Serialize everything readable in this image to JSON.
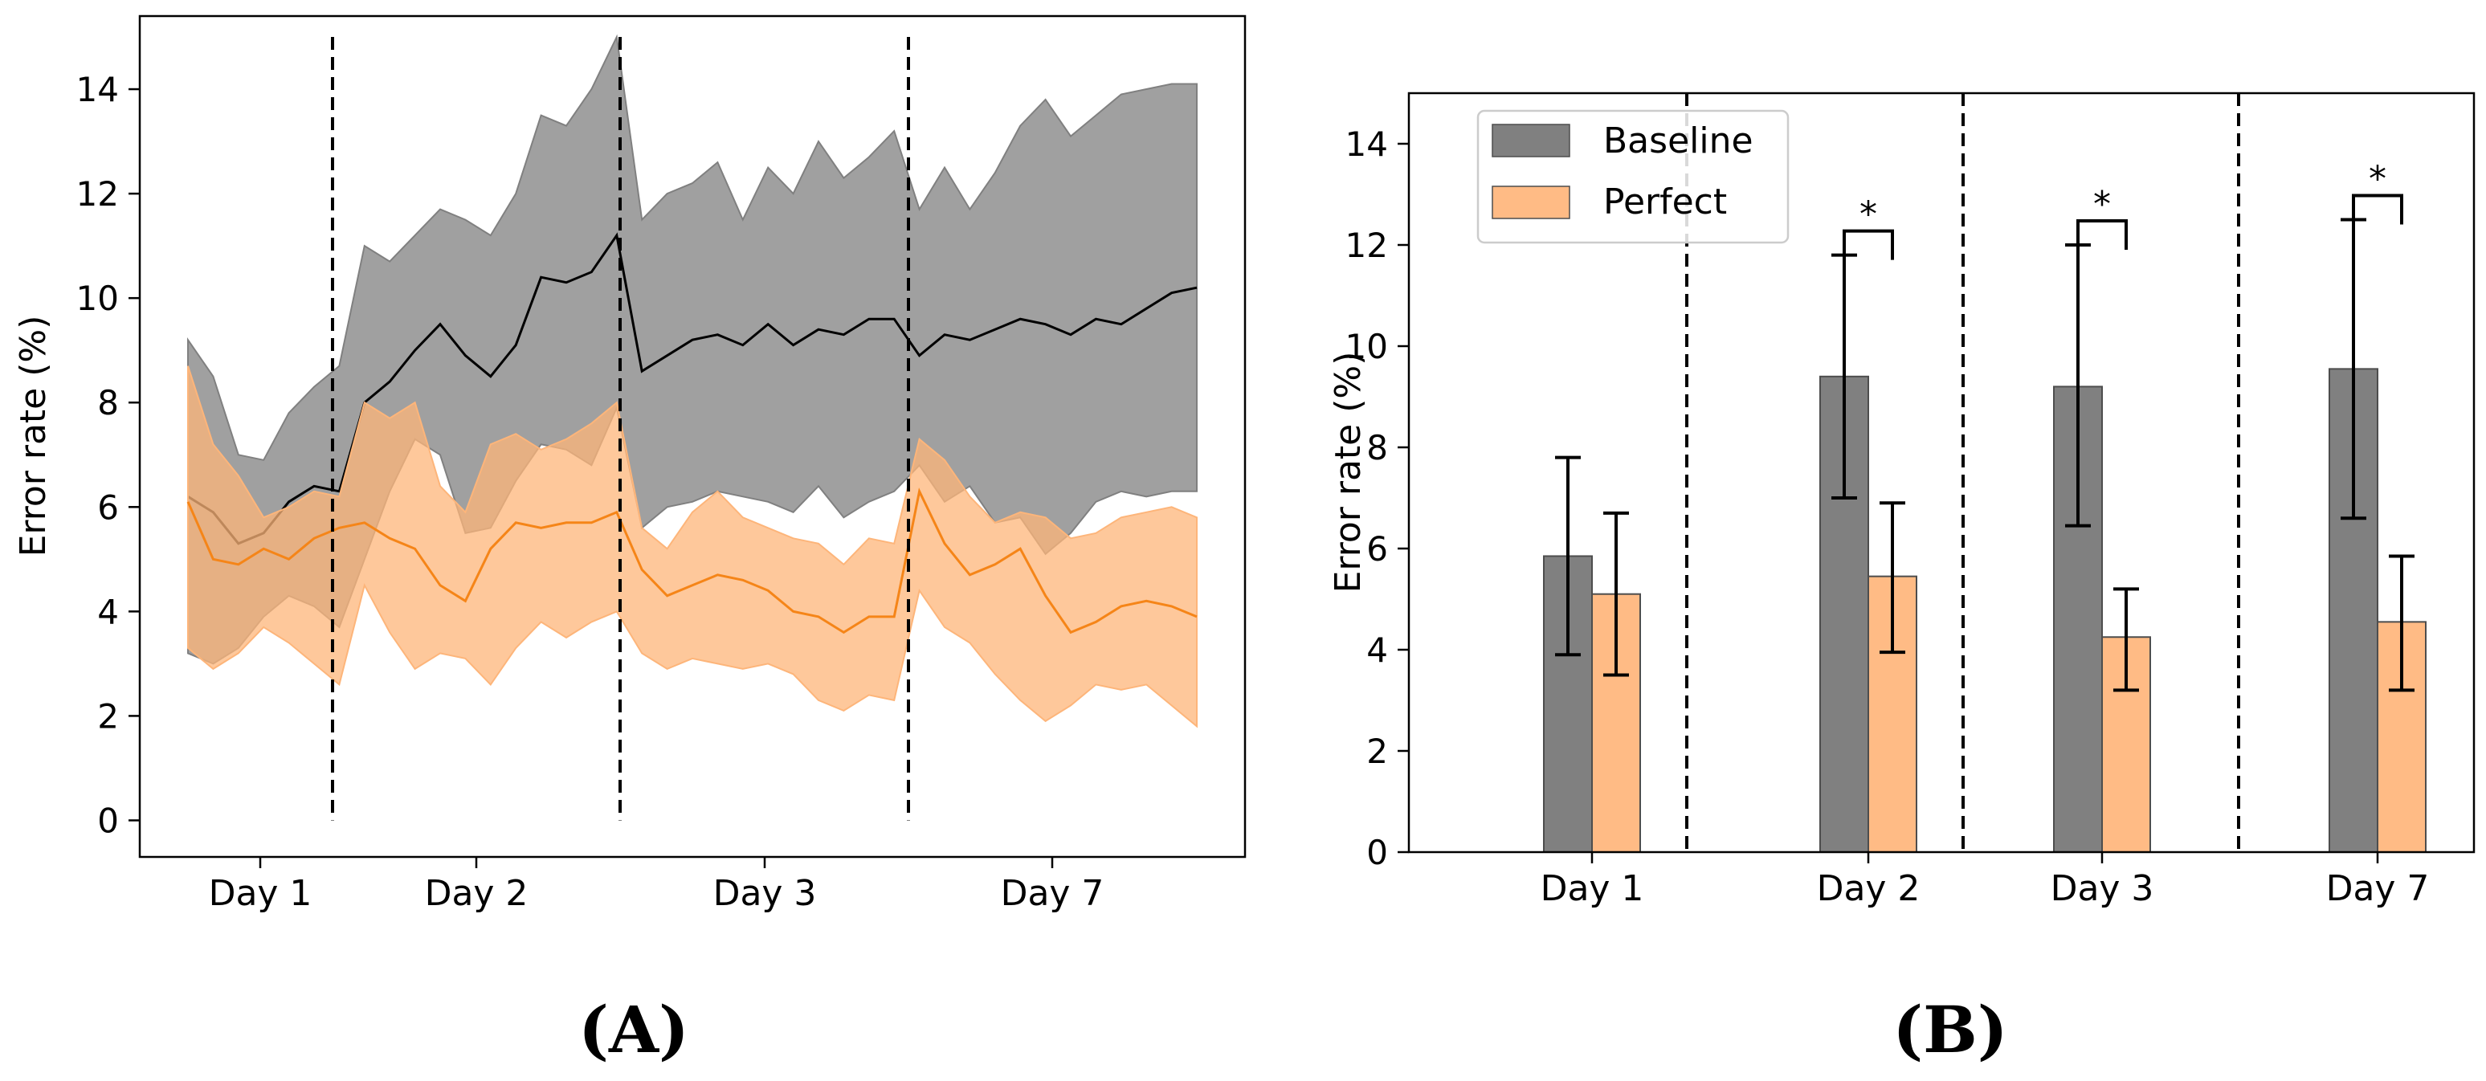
{
  "panel_labels": {
    "a": "(A)",
    "b": "(B)"
  },
  "colors": {
    "baseline_band": "#808080",
    "baseline_line": "#000000",
    "perfect_band": "#fdb57a",
    "perfect_line": "#f58518",
    "baseline_bar": "#808080",
    "perfect_bar": "#ffbb85"
  },
  "chart_data": [
    {
      "panel": "A",
      "type": "area",
      "ylabel": "Error rate (%)",
      "ylim": [
        -0.7,
        15.4
      ],
      "yticks": [
        0,
        2,
        4,
        6,
        8,
        10,
        12,
        14
      ],
      "x_tick_labels": [
        "Day 1",
        "Day 2",
        "Day 3",
        "Day 7"
      ],
      "grid": false,
      "segment_dividers": 3,
      "series": [
        {
          "key": "baseline",
          "x": [
            0,
            1,
            2,
            3,
            4,
            5,
            6,
            7,
            8,
            9,
            10,
            11,
            12,
            13,
            14,
            15,
            16,
            17,
            18,
            19,
            20,
            21,
            22,
            23,
            24,
            25,
            26,
            27,
            28,
            29,
            30,
            31,
            32,
            33,
            34,
            35,
            36,
            37,
            38,
            39,
            40
          ],
          "upper": [
            9.2,
            8.5,
            7.0,
            6.9,
            7.8,
            8.3,
            8.7,
            11.0,
            10.7,
            11.2,
            11.7,
            11.5,
            11.2,
            12.0,
            13.5,
            13.3,
            14.0,
            15.0,
            11.5,
            12.0,
            12.2,
            12.6,
            11.5,
            12.5,
            12.0,
            13.0,
            12.3,
            12.7,
            13.2,
            11.7,
            12.5,
            11.7,
            12.4,
            13.3,
            13.8,
            13.1,
            13.5,
            13.9,
            14.0,
            14.1,
            14.1
          ],
          "mean": [
            6.2,
            5.9,
            5.3,
            5.5,
            6.1,
            6.4,
            6.3,
            8.0,
            8.4,
            9.0,
            9.5,
            8.9,
            8.5,
            9.1,
            10.4,
            10.3,
            10.5,
            11.2,
            8.6,
            8.9,
            9.2,
            9.3,
            9.1,
            9.5,
            9.1,
            9.4,
            9.3,
            9.6,
            9.6,
            8.9,
            9.3,
            9.2,
            9.4,
            9.6,
            9.5,
            9.3,
            9.6,
            9.5,
            9.8,
            10.1,
            10.2
          ],
          "lower": [
            3.2,
            3.0,
            3.3,
            3.9,
            4.3,
            4.1,
            3.7,
            5.0,
            6.3,
            7.3,
            7.0,
            5.5,
            5.6,
            6.5,
            7.2,
            7.1,
            6.8,
            7.9,
            5.6,
            6.0,
            6.1,
            6.3,
            6.2,
            6.1,
            5.9,
            6.4,
            5.8,
            6.1,
            6.3,
            6.8,
            6.1,
            6.4,
            5.7,
            5.8,
            5.1,
            5.5,
            6.1,
            6.3,
            6.2,
            6.3,
            6.3
          ]
        },
        {
          "key": "perfect",
          "x": [
            0,
            1,
            2,
            3,
            4,
            5,
            6,
            7,
            8,
            9,
            10,
            11,
            12,
            13,
            14,
            15,
            16,
            17,
            18,
            19,
            20,
            21,
            22,
            23,
            24,
            25,
            26,
            27,
            28,
            29,
            30,
            31,
            32,
            33,
            34,
            35,
            36,
            37,
            38,
            39,
            40
          ],
          "upper": [
            8.7,
            7.2,
            6.6,
            5.8,
            6.0,
            6.3,
            6.2,
            8.0,
            7.7,
            8.0,
            6.4,
            5.9,
            7.2,
            7.4,
            7.1,
            7.3,
            7.6,
            8.0,
            5.6,
            5.2,
            5.9,
            6.3,
            5.8,
            5.6,
            5.4,
            5.3,
            4.9,
            5.4,
            5.3,
            7.3,
            6.9,
            6.2,
            5.7,
            5.9,
            5.8,
            5.4,
            5.5,
            5.8,
            5.9,
            6.0,
            5.8
          ],
          "mean": [
            6.1,
            5.0,
            4.9,
            5.2,
            5.0,
            5.4,
            5.6,
            5.7,
            5.4,
            5.2,
            4.5,
            4.2,
            5.2,
            5.7,
            5.6,
            5.7,
            5.7,
            5.9,
            4.8,
            4.3,
            4.5,
            4.7,
            4.6,
            4.4,
            4.0,
            3.9,
            3.6,
            3.9,
            3.9,
            6.3,
            5.3,
            4.7,
            4.9,
            5.2,
            4.3,
            3.6,
            3.8,
            4.1,
            4.2,
            4.1,
            3.9
          ],
          "lower": [
            3.3,
            2.9,
            3.2,
            3.7,
            3.4,
            3.0,
            2.6,
            4.5,
            3.6,
            2.9,
            3.2,
            3.1,
            2.6,
            3.3,
            3.8,
            3.5,
            3.8,
            4.0,
            3.2,
            2.9,
            3.1,
            3.0,
            2.9,
            3.0,
            2.8,
            2.3,
            2.1,
            2.4,
            2.3,
            4.4,
            3.7,
            3.4,
            2.8,
            2.3,
            1.9,
            2.2,
            2.6,
            2.5,
            2.6,
            2.2,
            1.8
          ]
        }
      ]
    },
    {
      "panel": "B",
      "type": "bar",
      "categories": [
        "Day 1",
        "Day 2",
        "Day 3",
        "Day 7"
      ],
      "ylabel": "Error rate (%)",
      "ylim": [
        0,
        15
      ],
      "yticks": [
        0,
        2,
        4,
        6,
        8,
        10,
        12,
        14
      ],
      "legend_position": "top-left",
      "grid": false,
      "series": [
        {
          "name": "Baseline",
          "values": [
            5.85,
            9.4,
            9.2,
            9.55
          ],
          "err_low": [
            3.9,
            7.0,
            6.45,
            6.6
          ],
          "err_high": [
            7.8,
            11.8,
            12.0,
            12.5
          ]
        },
        {
          "name": "Perfect",
          "values": [
            5.1,
            5.45,
            4.25,
            4.55
          ],
          "err_low": [
            3.5,
            3.95,
            3.2,
            3.2
          ],
          "err_high": [
            6.7,
            6.9,
            5.2,
            5.85
          ]
        }
      ],
      "significance": [
        {
          "category": "Day 1",
          "label": ""
        },
        {
          "category": "Day 2",
          "label": "*"
        },
        {
          "category": "Day 3",
          "label": "*"
        },
        {
          "category": "Day 7",
          "label": "*"
        }
      ]
    }
  ]
}
